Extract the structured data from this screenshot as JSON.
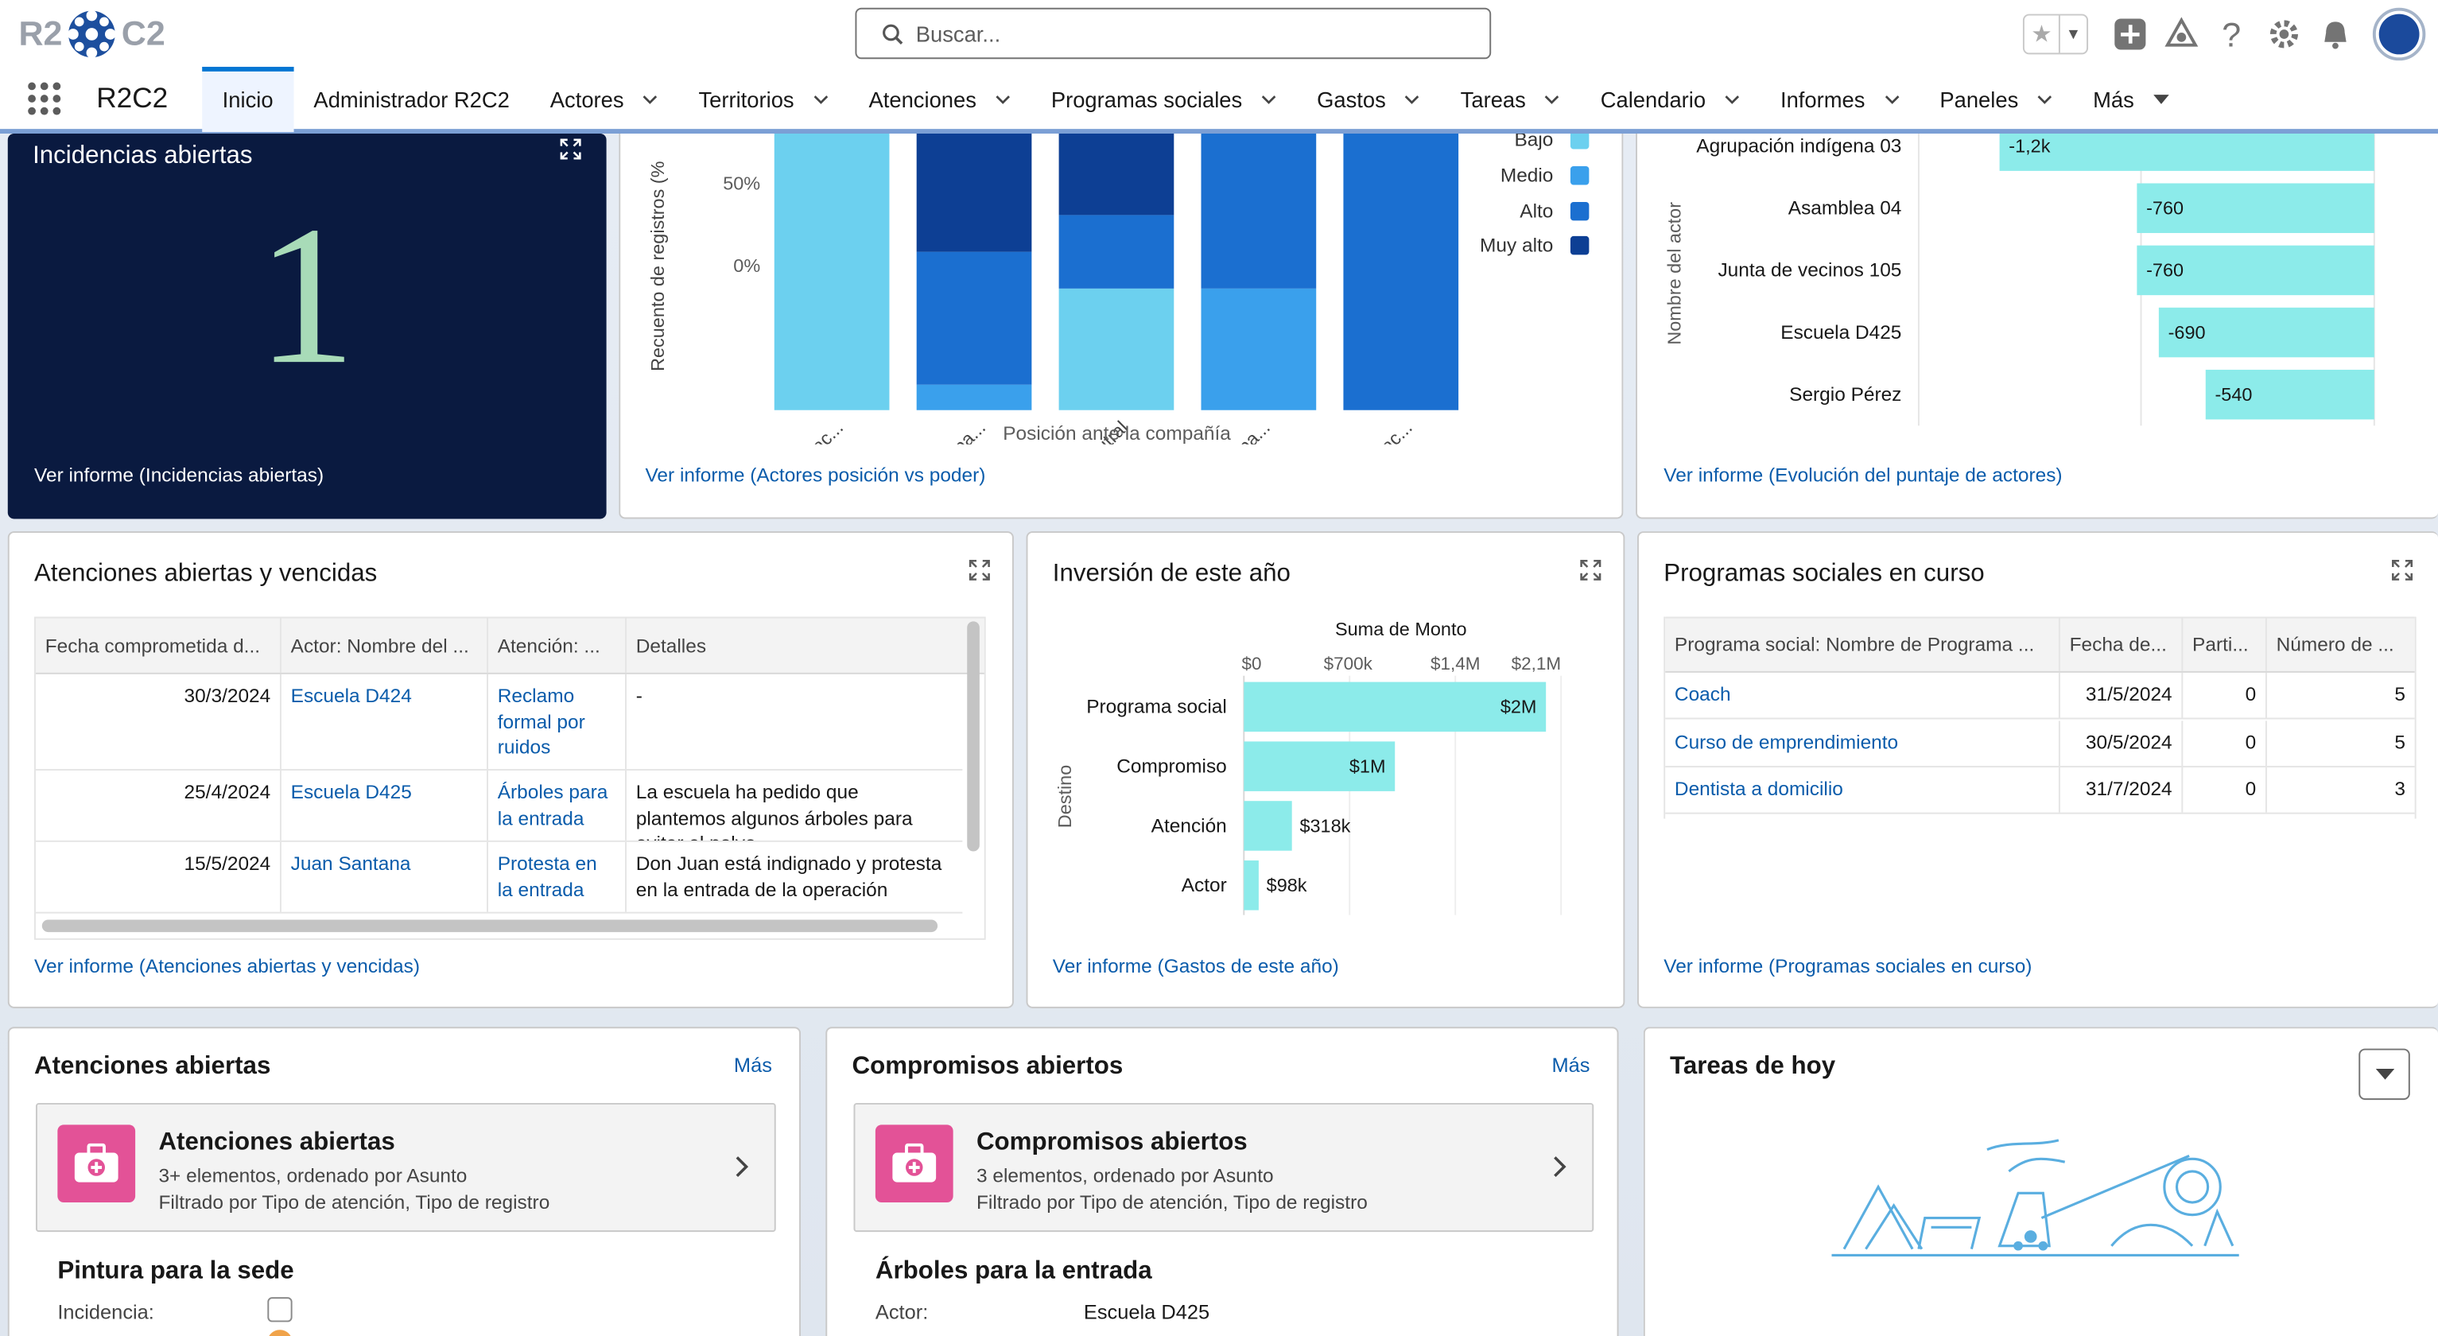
{
  "header": {
    "logo_left": "R2",
    "logo_right": "C2",
    "search_placeholder": "Buscar...",
    "icons": [
      "favorite-star-icon",
      "add-icon",
      "trailhead-icon",
      "help-icon",
      "setup-gear-icon",
      "notification-bell-icon",
      "user-avatar"
    ]
  },
  "nav": {
    "app_name": "R2C2",
    "items": [
      {
        "label": "Inicio",
        "active": true,
        "dropdown": false
      },
      {
        "label": "Administrador R2C2",
        "dropdown": false
      },
      {
        "label": "Actores",
        "dropdown": true
      },
      {
        "label": "Territorios",
        "dropdown": true
      },
      {
        "label": "Atenciones",
        "dropdown": true
      },
      {
        "label": "Programas sociales",
        "dropdown": true
      },
      {
        "label": "Gastos",
        "dropdown": true
      },
      {
        "label": "Tareas",
        "dropdown": true
      },
      {
        "label": "Calendario",
        "dropdown": true
      },
      {
        "label": "Informes",
        "dropdown": true
      },
      {
        "label": "Paneles",
        "dropdown": true
      },
      {
        "label": "Más",
        "dropdown": true
      }
    ]
  },
  "incidencias": {
    "title": "Incidencias abiertas",
    "value": "1",
    "link": "Ver informe (Incidencias abiertas)"
  },
  "posicion_poder": {
    "ylabel": "Recuento de registros (%",
    "xlabel": "Posición ante la compañía",
    "link": "Ver informe (Actores posición vs poder)",
    "yticks": [
      "50%",
      "0%"
    ],
    "categories": [
      "Promotor ac...",
      "Promotor pa...",
      "Neutral",
      "Detractor pa...",
      "Detractor ac..."
    ],
    "legend": [
      {
        "label": "Bajo",
        "color": "#6cd0ef"
      },
      {
        "label": "Medio",
        "color": "#3aa0ec"
      },
      {
        "label": "Alto",
        "color": "#1b6fd0"
      },
      {
        "label": "Muy alto",
        "color": "#0d3f94"
      }
    ]
  },
  "evolucion": {
    "ylabel": "Nombre del actor",
    "link": "Ver informe (Evolución del puntaje de actores)",
    "actors": [
      "Agrupación indígena 03",
      "Asamblea 04",
      "Junta de vecinos 105",
      "Escuela D425",
      "Sergio Pérez"
    ],
    "value_labels": [
      "-1,2k",
      "-760",
      "-760",
      "-690",
      "-540"
    ]
  },
  "atenciones_vencidas": {
    "title": "Atenciones abiertas y vencidas",
    "link": "Ver informe (Atenciones abiertas y vencidas)",
    "columns": [
      "Fecha comprometida d...",
      "Actor: Nombre del ...",
      "Atención: ...",
      "Detalles"
    ],
    "rows": [
      {
        "fecha": "30/3/2024",
        "actor": "Escuela D424",
        "atencion": "Reclamo formal por ruidos",
        "detalles": "-"
      },
      {
        "fecha": "25/4/2024",
        "actor": "Escuela D425",
        "atencion": "Árboles para la entrada",
        "detalles": "La escuela ha pedido que plantemos algunos árboles para evitar el polvo."
      },
      {
        "fecha": "15/5/2024",
        "actor": "Juan Santana",
        "atencion": "Protesta en la entrada",
        "detalles": "Don Juan está indignado y protesta en la entrada de la operación"
      }
    ]
  },
  "inversion": {
    "title": "Inversión de este año",
    "axis_title": "Suma de Monto",
    "ylabel": "Destino",
    "xticks": [
      "$0",
      "$700k",
      "$1,4M",
      "$2,1M"
    ],
    "link": "Ver informe (Gastos de este año)",
    "categories": [
      "Programa social",
      "Compromiso",
      "Atención",
      "Actor"
    ],
    "value_labels": [
      "$2M",
      "$1M",
      "$318k",
      "$98k"
    ]
  },
  "programas": {
    "title": "Programas sociales en curso",
    "link": "Ver informe (Programas sociales en curso)",
    "columns": [
      "Programa social: Nombre de Programa ...",
      "Fecha de...",
      "Parti...",
      "Número de ..."
    ],
    "rows": [
      {
        "nombre": "Coach",
        "fecha": "31/5/2024",
        "parti": "0",
        "numero": "5"
      },
      {
        "nombre": "Curso de emprendimiento",
        "fecha": "30/5/2024",
        "parti": "0",
        "numero": "5"
      },
      {
        "nombre": "Dentista a domicilio",
        "fecha": "31/7/2024",
        "parti": "0",
        "numero": "3"
      }
    ]
  },
  "atenciones_abiertas": {
    "title": "Atenciones abiertas",
    "more": "Más",
    "list_title": "Atenciones abiertas",
    "list_sub1": "3+ elementos, ordenado por Asunto",
    "list_sub2": "Filtrado por Tipo de atención, Tipo de registro",
    "item_title": "Pintura para la sede",
    "field_label": "Incidencia:"
  },
  "compromisos": {
    "title": "Compromisos abiertos",
    "more": "Más",
    "list_title": "Compromisos abiertos",
    "list_sub1": "3 elementos, ordenado por Asunto",
    "list_sub2": "Filtrado por Tipo de atención, Tipo de registro",
    "item_title": "Árboles para la entrada",
    "field_label": "Actor:",
    "field_value": "Escuela D425"
  },
  "tareas": {
    "title": "Tareas de hoy"
  },
  "chart_data": [
    {
      "type": "bar",
      "stacked": true,
      "title": "",
      "xlabel": "Posición ante la compañía",
      "ylabel": "Recuento de registros (%",
      "categories": [
        "Promotor ac...",
        "Promotor pa...",
        "Neutral",
        "Detractor pa...",
        "Detractor ac..."
      ],
      "series": [
        {
          "name": "Bajo",
          "values": [
            100,
            0,
            43,
            0,
            0
          ]
        },
        {
          "name": "Medio",
          "values": [
            0,
            9,
            0,
            43,
            0
          ]
        },
        {
          "name": "Alto",
          "values": [
            0,
            47,
            26,
            57,
            100
          ]
        },
        {
          "name": "Muy alto",
          "values": [
            0,
            44,
            31,
            0,
            0
          ]
        }
      ],
      "ylim": [
        0,
        100
      ]
    },
    {
      "type": "bar",
      "orientation": "horizontal",
      "ylabel": "Nombre del actor",
      "categories": [
        "Agrupación indígena 03",
        "Asamblea 04",
        "Junta de vecinos 105",
        "Escuela D425",
        "Sergio Pérez"
      ],
      "values": [
        -1200,
        -760,
        -760,
        -690,
        -540
      ]
    },
    {
      "type": "bar",
      "orientation": "horizontal",
      "title": "Suma de Monto",
      "ylabel": "Destino",
      "categories": [
        "Programa social",
        "Compromiso",
        "Atención",
        "Actor"
      ],
      "values": [
        2000000,
        1000000,
        318000,
        98000
      ],
      "xlim": [
        0,
        2100000
      ]
    }
  ]
}
